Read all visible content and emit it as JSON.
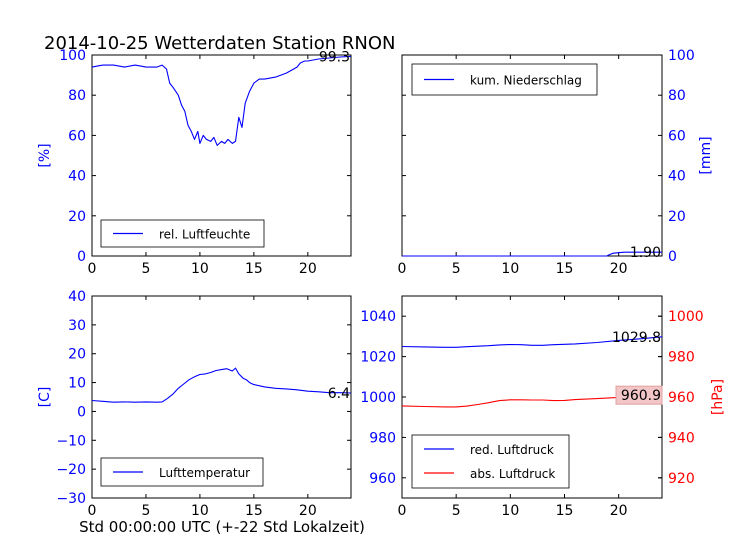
{
  "title": "2014-10-25 Wetterdaten Station RNON",
  "footer_xlabel": "Std 00:00:00 UTC (+-22 Std Lokalzeit)",
  "colors": {
    "blue": "#0000ff",
    "red": "#ff0000",
    "black": "#000000"
  },
  "chart_data": [
    {
      "id": "humidity",
      "type": "line",
      "ylabel": "[%]",
      "xlim": [
        0,
        24
      ],
      "ylim": [
        0,
        100
      ],
      "xticks": [
        0,
        5,
        10,
        15,
        20
      ],
      "yticks": [
        0,
        20,
        40,
        60,
        80,
        100
      ],
      "legend": "bottom-left",
      "series": [
        {
          "name": "rel. Luftfeuchte",
          "color": "#0000ff",
          "x": [
            0,
            1,
            2,
            3,
            4,
            5,
            6,
            6.5,
            6.9,
            7.2,
            7.5,
            8,
            8.3,
            8.6,
            8.9,
            9.2,
            9.5,
            9.8,
            10,
            10.3,
            10.6,
            11,
            11.3,
            11.6,
            12,
            12.3,
            12.6,
            13,
            13.3,
            13.6,
            13.9,
            14.2,
            14.6,
            15,
            15.5,
            16,
            17,
            18,
            19,
            19.3,
            19.7,
            20,
            21,
            22,
            23,
            24
          ],
          "y": [
            94,
            95,
            95,
            94,
            95,
            94,
            94,
            95,
            93,
            86,
            84,
            80,
            75,
            72,
            65,
            62,
            58,
            62,
            56,
            60,
            58,
            57,
            59,
            55,
            57,
            56,
            58,
            56,
            57,
            69,
            64,
            76,
            82,
            86,
            88,
            88,
            89,
            91,
            94,
            96,
            97,
            97,
            98,
            98.5,
            99,
            99.3
          ]
        }
      ],
      "annotations": [
        {
          "text": "99.3",
          "x": 24,
          "y": 99.3
        }
      ]
    },
    {
      "id": "precipitation",
      "type": "line",
      "ylabel": "[mm]",
      "xlim": [
        0,
        24
      ],
      "ylim": [
        0,
        100
      ],
      "xticks": [
        0,
        5,
        10,
        15,
        20
      ],
      "yticks": [
        0,
        20,
        40,
        60,
        80,
        100
      ],
      "yaxis_side": "right",
      "legend": "top-left",
      "series": [
        {
          "name": "kum. Niederschlag",
          "color": "#0000ff",
          "x": [
            0,
            18.9,
            19.2,
            19.5,
            20.5,
            24
          ],
          "y": [
            0,
            0,
            0.8,
            1.4,
            1.9,
            1.9
          ]
        }
      ],
      "annotations": [
        {
          "text": "1.90",
          "x": 24,
          "y": 1.9
        }
      ]
    },
    {
      "id": "temperature",
      "type": "line",
      "ylabel": "[C]",
      "xlim": [
        0,
        24
      ],
      "ylim": [
        -30,
        40
      ],
      "xticks": [
        0,
        5,
        10,
        15,
        20
      ],
      "yticks": [
        -30,
        -20,
        -10,
        0,
        10,
        20,
        30,
        40
      ],
      "legend": "bottom-left",
      "series": [
        {
          "name": "Lufttemperatur",
          "color": "#0000ff",
          "x": [
            0,
            1,
            2,
            3,
            4,
            5,
            6,
            6.5,
            7,
            7.5,
            8,
            8.5,
            9,
            9.5,
            10,
            10.5,
            11,
            11.5,
            12,
            12.5,
            13,
            13.3,
            13.6,
            14,
            14.3,
            14.6,
            15,
            16,
            17,
            18,
            19,
            20,
            21,
            22,
            23,
            24
          ],
          "y": [
            3.8,
            3.5,
            3.2,
            3.3,
            3.2,
            3.3,
            3.2,
            3.3,
            4.5,
            6,
            8,
            9.5,
            11,
            12,
            12.8,
            13,
            13.5,
            14.2,
            14.5,
            14.8,
            14,
            15,
            13,
            11.5,
            11,
            10,
            9.3,
            8.5,
            8,
            7.8,
            7.5,
            7,
            6.8,
            6.5,
            6.5,
            6.4
          ]
        }
      ],
      "annotations": [
        {
          "text": "6.4",
          "x": 24,
          "y": 6.4
        }
      ]
    },
    {
      "id": "pressure",
      "type": "line",
      "xlim": [
        0,
        24
      ],
      "xticks": [
        0,
        5,
        10,
        15,
        20
      ],
      "y1": {
        "ylim": [
          950,
          1050
        ],
        "yticks": [
          960,
          980,
          1000,
          1020,
          1040
        ],
        "color": "#0000ff"
      },
      "y2": {
        "label": "[hPa]",
        "ylim": [
          910,
          1010
        ],
        "yticks": [
          920,
          940,
          960,
          980,
          1000
        ],
        "color": "#ff0000"
      },
      "legend": "bottom-left",
      "series": [
        {
          "name": "red. Luftdruck",
          "color": "#0000ff",
          "axis": "y1",
          "x": [
            0,
            2,
            4,
            5,
            6,
            8,
            9,
            10,
            11,
            12,
            13,
            14,
            15,
            16,
            18,
            20,
            22,
            24
          ],
          "y": [
            1025,
            1024.8,
            1024.6,
            1024.6,
            1024.9,
            1025.4,
            1025.8,
            1026,
            1025.9,
            1025.6,
            1025.6,
            1025.9,
            1026.1,
            1026.3,
            1027,
            1028,
            1028.8,
            1029.8
          ]
        },
        {
          "name": "abs. Luftdruck",
          "color": "#ff0000",
          "axis": "y2",
          "x": [
            0,
            2,
            4,
            5,
            6,
            7,
            8,
            9,
            10,
            11,
            12,
            13,
            14,
            15,
            16,
            18,
            20,
            22,
            24
          ],
          "y": [
            955.6,
            955.3,
            955.1,
            955.1,
            955.5,
            956.3,
            957.2,
            958.2,
            958.6,
            958.6,
            958.5,
            958.5,
            958.2,
            958.3,
            958.7,
            959.2,
            959.8,
            960.3,
            960.9
          ]
        }
      ],
      "annotations": [
        {
          "text": "1029.8",
          "x": 24,
          "y": 1029.8,
          "axis": "y1"
        },
        {
          "text": "960.9",
          "x": 24,
          "y": 960.9,
          "axis": "y2",
          "boxed": true
        }
      ]
    }
  ]
}
